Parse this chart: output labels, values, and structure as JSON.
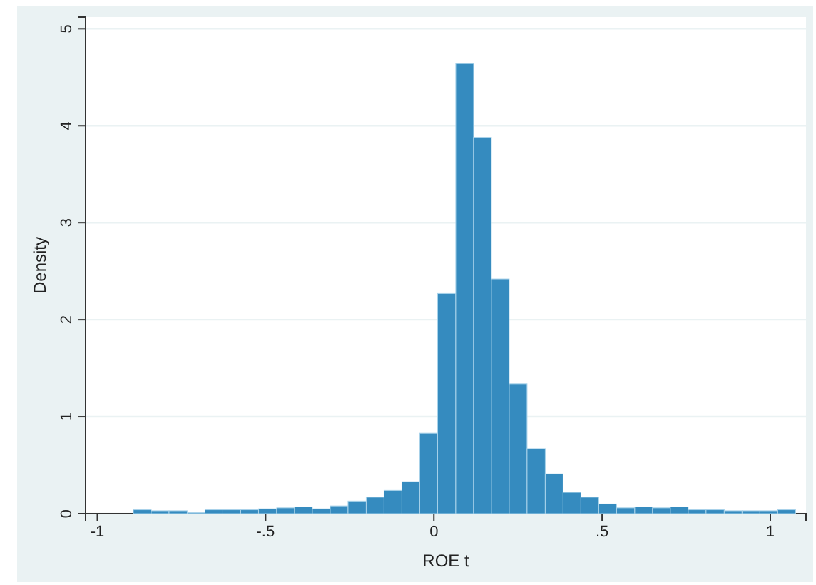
{
  "chart_data": {
    "type": "histogram",
    "xlabel": "ROE t",
    "ylabel": "Density",
    "bins": [
      -0.893,
      -0.84,
      -0.787,
      -0.733,
      -0.68,
      -0.627,
      -0.574,
      -0.521,
      -0.467,
      -0.414,
      -0.361,
      -0.308,
      -0.255,
      -0.201,
      -0.148,
      -0.095,
      -0.042,
      0.011,
      0.065,
      0.118,
      0.171,
      0.224,
      0.277,
      0.331,
      0.384,
      0.437,
      0.49,
      0.543,
      0.597,
      0.65,
      0.703,
      0.756,
      0.809,
      0.863,
      0.916,
      0.969,
      1.022,
      1.075
    ],
    "values": [
      0.04,
      0.03,
      0.03,
      0.01,
      0.04,
      0.04,
      0.04,
      0.05,
      0.06,
      0.07,
      0.05,
      0.08,
      0.13,
      0.17,
      0.24,
      0.33,
      0.83,
      2.27,
      4.64,
      3.88,
      2.42,
      1.34,
      0.67,
      0.41,
      0.22,
      0.17,
      0.1,
      0.06,
      0.07,
      0.06,
      0.07,
      0.04,
      0.04,
      0.03,
      0.03,
      0.03,
      0.04
    ],
    "color": "#358bbf",
    "xlim": [
      -1.035,
      1.106
    ],
    "ylim": [
      0,
      5.12
    ],
    "xticks": [
      -1,
      {
        "value": -0.5,
        "label": "-.5"
      },
      0,
      {
        "value": 0.5,
        "label": ".5"
      },
      1
    ],
    "yticks": [
      0,
      1,
      2,
      3,
      4,
      5
    ],
    "grid": "y"
  }
}
